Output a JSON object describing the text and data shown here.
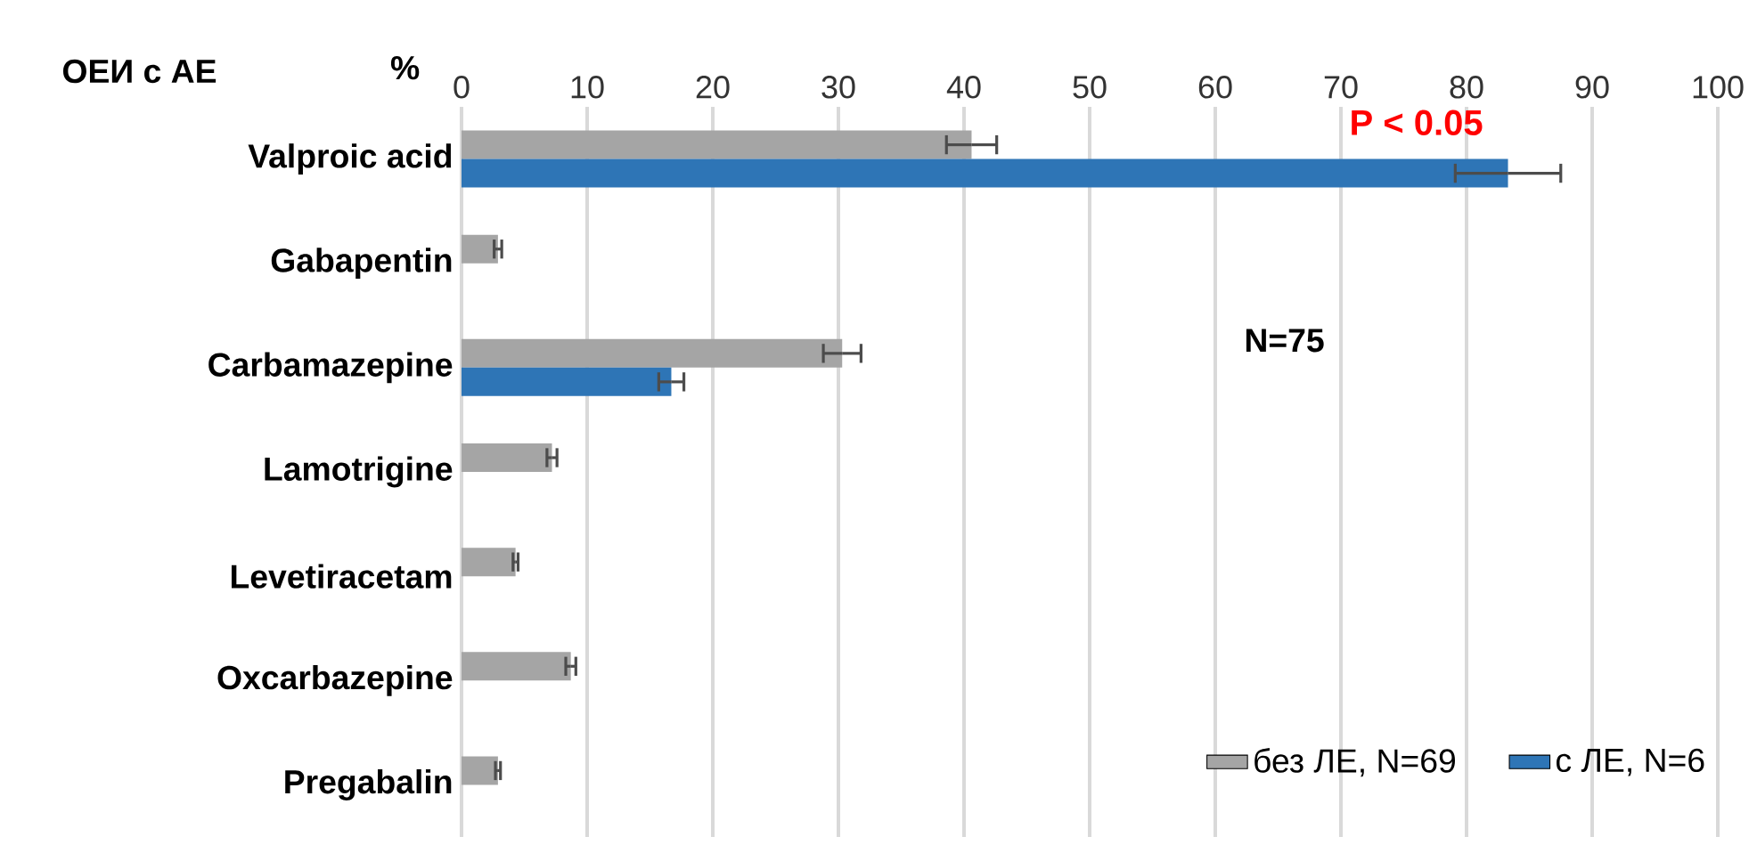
{
  "chart_data": {
    "type": "bar",
    "orientation": "horizontal",
    "title": "ОЕИ с АЕ",
    "xlabel": "%",
    "categories": [
      "Valproic acid",
      "Gabapentin",
      "Carbamazepine",
      "Lamotrigine",
      "Levetiracetam",
      "Oxcarbazepine",
      "Pregabalin"
    ],
    "series": [
      {
        "name": "без ЛЕ, N=69",
        "color": "#a5a5a5",
        "values": [
          40.6,
          2.9,
          30.3,
          7.2,
          4.3,
          8.7,
          2.9
        ],
        "errors": [
          2.0,
          0.3,
          1.5,
          0.4,
          0.2,
          0.4,
          0.2
        ]
      },
      {
        "name": "с ЛЕ, N=6",
        "color": "#2e75b6",
        "values": [
          83.3,
          null,
          16.7,
          null,
          null,
          null,
          null
        ],
        "errors": [
          4.2,
          null,
          1.0,
          null,
          null,
          null,
          null
        ]
      }
    ],
    "xlim": [
      0,
      100
    ],
    "xticks": [
      0,
      10,
      20,
      30,
      40,
      50,
      60,
      70,
      80,
      90,
      100
    ],
    "grid": "x",
    "legend": "bottom right",
    "annotations": [
      {
        "text": "P < 0.05",
        "x": 76,
        "y": "Valproic acid"
      },
      "N=75"
    ]
  }
}
